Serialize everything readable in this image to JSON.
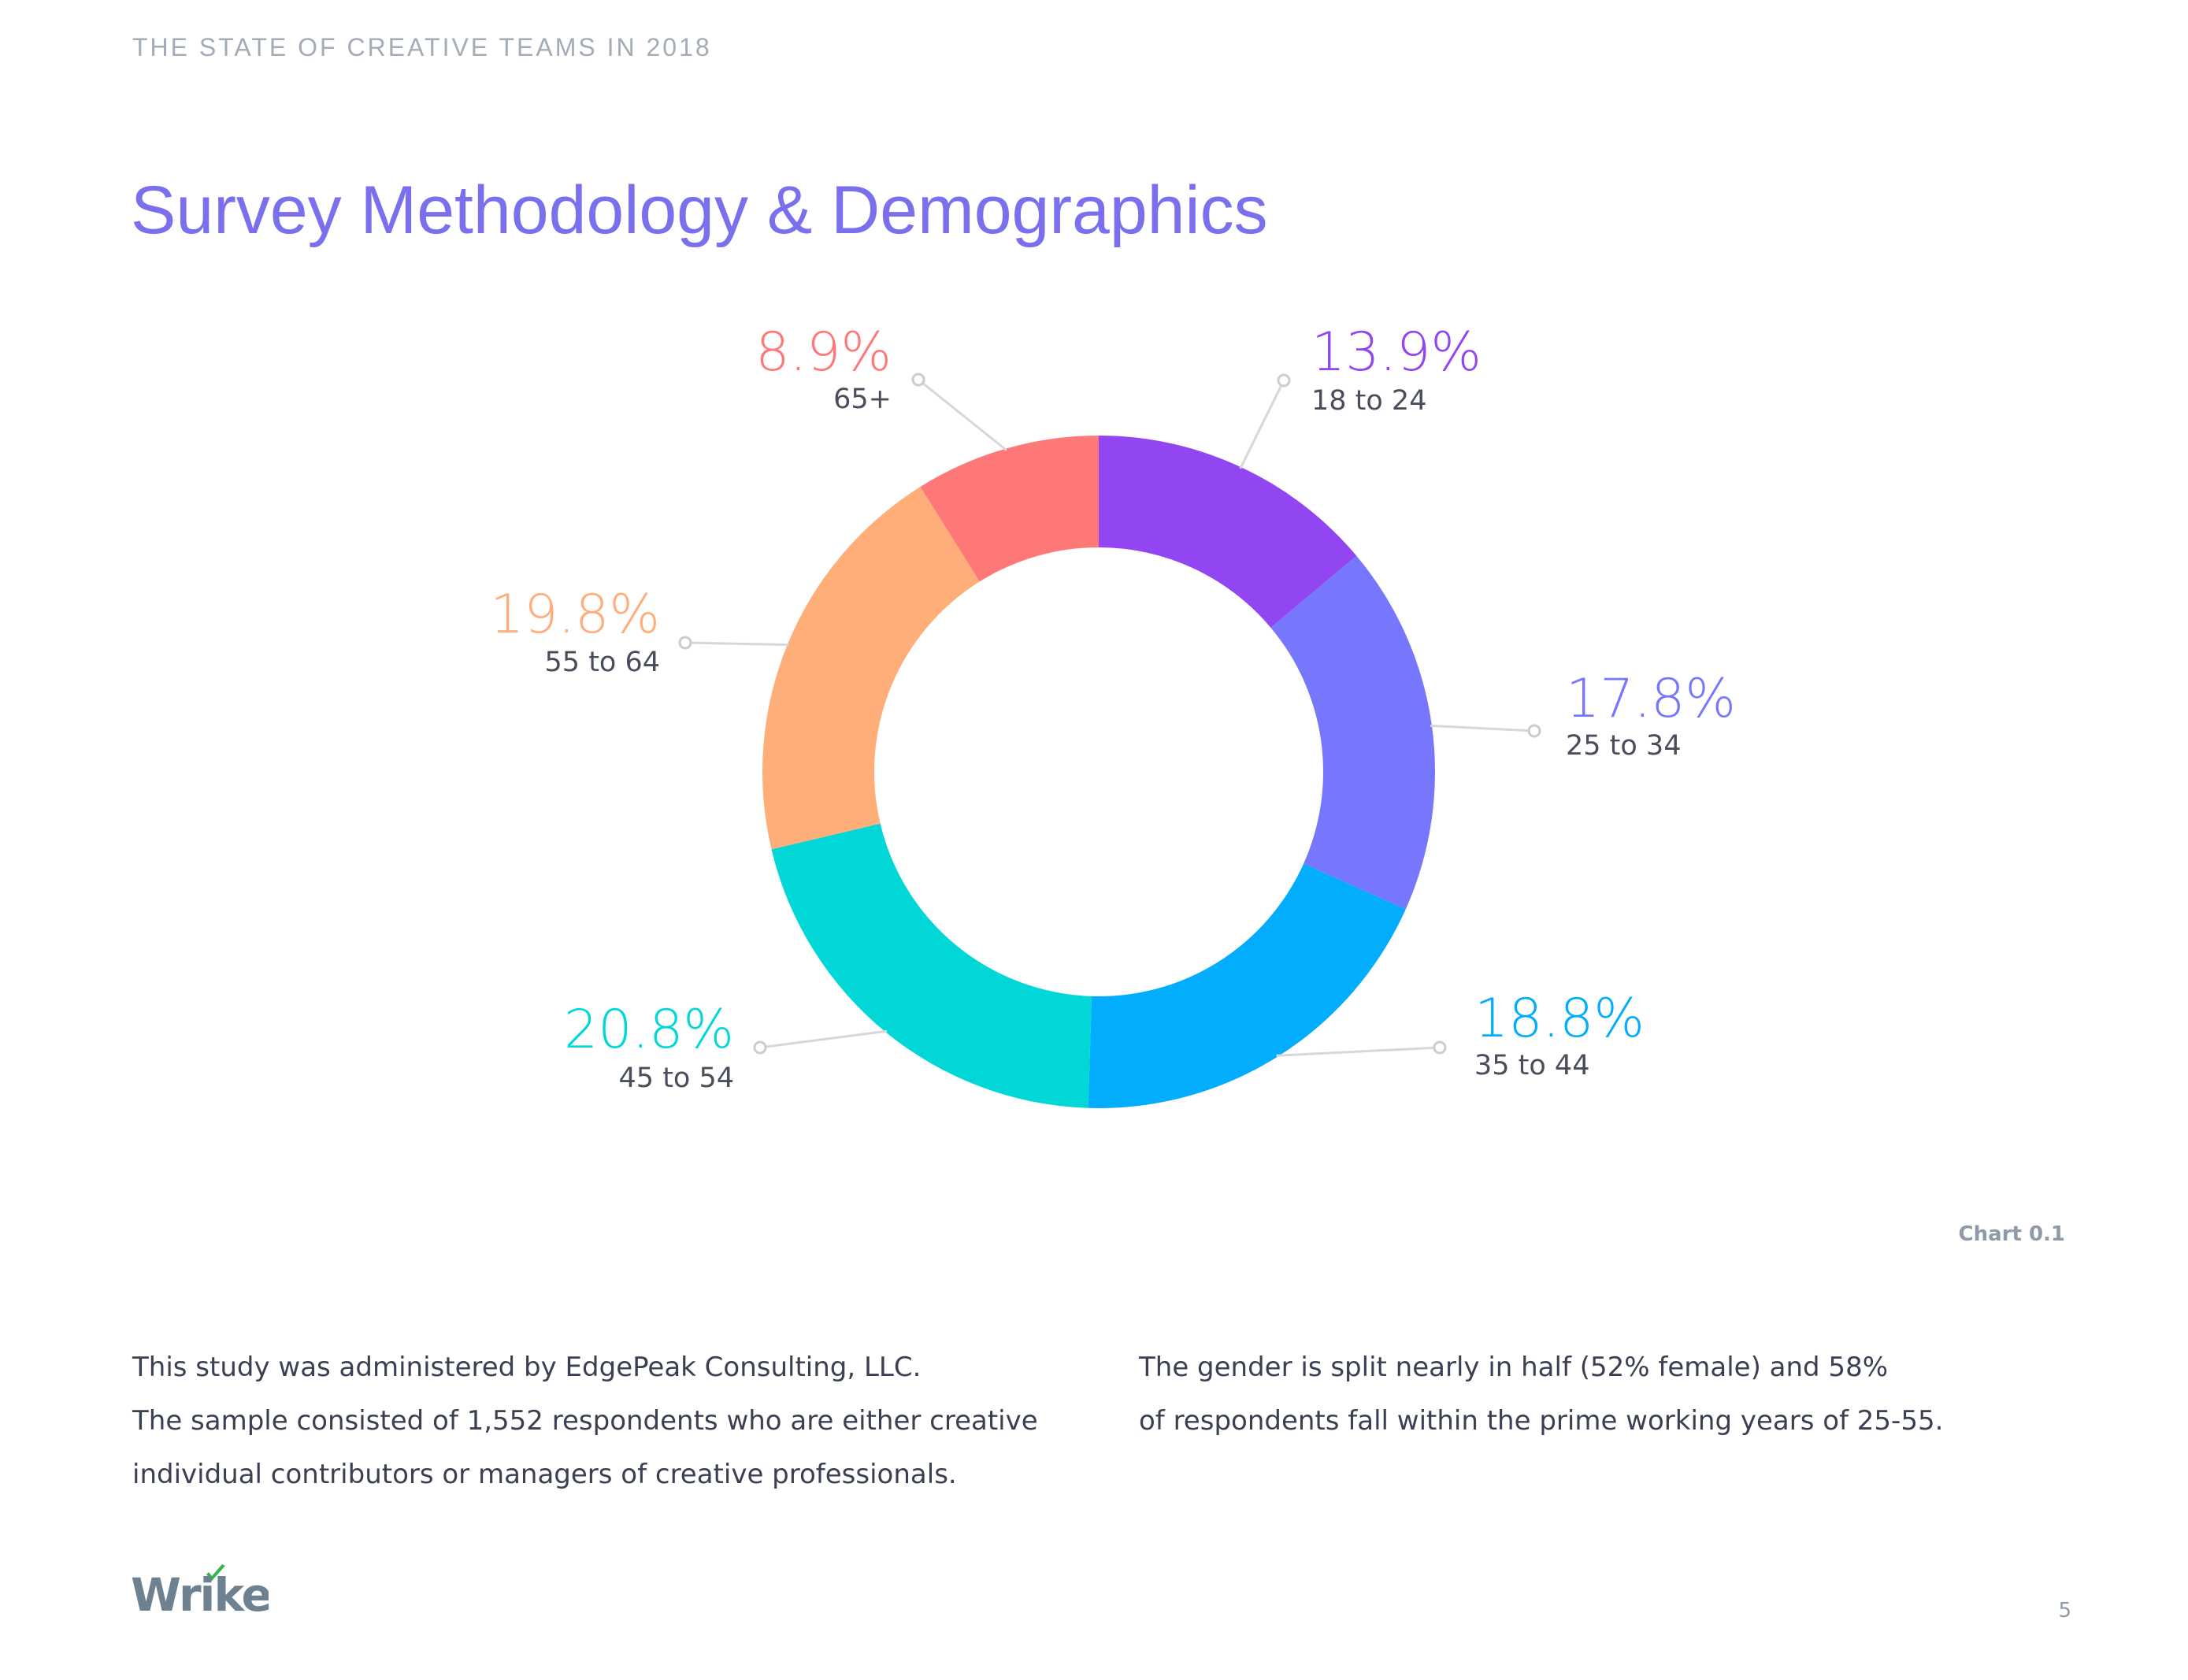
{
  "header": {
    "kicker": "THE STATE OF CREATIVE TEAMS IN 2018",
    "title": "Survey Methodology & Demographics"
  },
  "chart_data": {
    "type": "pie",
    "donut": true,
    "caption": "Chart 0.1",
    "slices": [
      {
        "label": "18 to 24",
        "value": 13.9,
        "display": "13.9%",
        "color": "#9146f2"
      },
      {
        "label": "25 to 34",
        "value": 17.8,
        "display": "17.8%",
        "color": "#7777fd"
      },
      {
        "label": "35 to 44",
        "value": 18.8,
        "display": "18.8%",
        "color": "#02adfd"
      },
      {
        "label": "45 to 54",
        "value": 20.8,
        "display": "20.8%",
        "color": "#02d7d7"
      },
      {
        "label": "55 to 64",
        "value": 19.8,
        "display": "19.8%",
        "color": "#ffad79"
      },
      {
        "label": "65+",
        "value": 8.9,
        "display": "8.9%",
        "color": "#ff7878"
      }
    ]
  },
  "body": {
    "left_lines": [
      "This study was administered by EdgePeak Consulting, LLC.",
      "The sample consisted of 1,552 respondents who are either creative",
      "individual contributors or managers of creative professionals."
    ],
    "right_lines": [
      "The gender is split nearly in half (52% female) and 58%",
      "of respondents fall within the prime working years of 25-55."
    ]
  },
  "footer": {
    "logo_text": "Wrike",
    "logo_color": "#6d8191",
    "logo_check_color": "#34b847",
    "page_number": "5"
  }
}
